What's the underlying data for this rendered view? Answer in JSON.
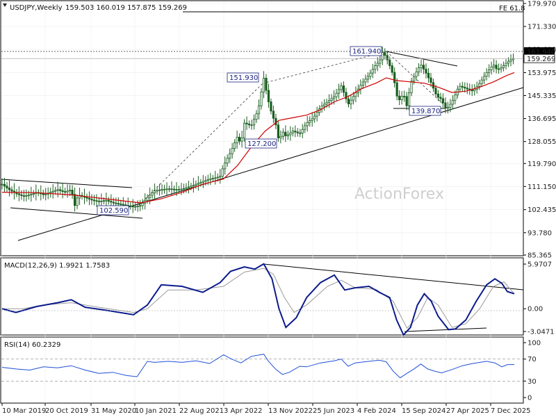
{
  "chart_data": {
    "type": "candlestick",
    "symbol": "USDJPY,Weekly",
    "ohlc": "159.503 160.019 157.875 159.269",
    "watermark": "ActionForex",
    "fe_label": "FE 61.8",
    "price_axis": {
      "ticks": [
        "179.970",
        "171.330",
        "162.690",
        "153.975",
        "145.335",
        "136.695",
        "128.055",
        "119.790",
        "111.150",
        "102.435",
        "93.780",
        "85.365"
      ],
      "current": "159.269",
      "level": "161.940"
    },
    "x_labels": [
      "10 Mar 2019",
      "20 Oct 2019",
      "31 May 2020",
      "10 Jan 2021",
      "22 Aug 2021",
      "3 Apr 2022",
      "13 Nov 2022",
      "25 Jun 2023",
      "4 Feb 2024",
      "15 Sep 2024",
      "27 Apr 2025",
      "7 Dec 2025"
    ],
    "price_path": [
      [
        0,
        112
      ],
      [
        10,
        110
      ],
      [
        20,
        108.5
      ],
      [
        30,
        107.5
      ],
      [
        40,
        108
      ],
      [
        50,
        109
      ],
      [
        60,
        108
      ],
      [
        70,
        109
      ],
      [
        80,
        110
      ],
      [
        90,
        109
      ],
      [
        100,
        110
      ],
      [
        105,
        104
      ],
      [
        110,
        108
      ],
      [
        120,
        107
      ],
      [
        130,
        106
      ],
      [
        140,
        105.5
      ],
      [
        150,
        106
      ],
      [
        160,
        105
      ],
      [
        170,
        104.5
      ],
      [
        180,
        104
      ],
      [
        190,
        103.5
      ],
      [
        200,
        104
      ],
      [
        210,
        107
      ],
      [
        220,
        109.5
      ],
      [
        230,
        110
      ],
      [
        240,
        110.3
      ],
      [
        250,
        110
      ],
      [
        260,
        110.2
      ],
      [
        270,
        111
      ],
      [
        280,
        112
      ],
      [
        290,
        113
      ],
      [
        300,
        114
      ],
      [
        310,
        114.5
      ],
      [
        315,
        115
      ],
      [
        320,
        119
      ],
      [
        330,
        124
      ],
      [
        340,
        130
      ],
      [
        345,
        127
      ],
      [
        350,
        135
      ],
      [
        360,
        134
      ],
      [
        370,
        140
      ],
      [
        378,
        151.9
      ],
      [
        384,
        144
      ],
      [
        390,
        138
      ],
      [
        395,
        135
      ],
      [
        400,
        128
      ],
      [
        405,
        132
      ],
      [
        410,
        130
      ],
      [
        420,
        132
      ],
      [
        430,
        131
      ],
      [
        440,
        135
      ],
      [
        450,
        137
      ],
      [
        460,
        141
      ],
      [
        470,
        143
      ],
      [
        480,
        145
      ],
      [
        490,
        149
      ],
      [
        500,
        142
      ],
      [
        510,
        146
      ],
      [
        520,
        150
      ],
      [
        530,
        153
      ],
      [
        540,
        157
      ],
      [
        545,
        158
      ],
      [
        550,
        161.9
      ],
      [
        558,
        158
      ],
      [
        565,
        153
      ],
      [
        572,
        143
      ],
      [
        580,
        146
      ],
      [
        585,
        141
      ],
      [
        590,
        150
      ],
      [
        600,
        155
      ],
      [
        605,
        157
      ],
      [
        612,
        154
      ],
      [
        620,
        150
      ],
      [
        628,
        145
      ],
      [
        635,
        144
      ],
      [
        640,
        140.5
      ],
      [
        645,
        141
      ],
      [
        652,
        144
      ],
      [
        660,
        149
      ],
      [
        670,
        148
      ],
      [
        680,
        147
      ],
      [
        690,
        150
      ],
      [
        700,
        154
      ],
      [
        710,
        157
      ],
      [
        715,
        155
      ],
      [
        722,
        156
      ],
      [
        730,
        158
      ],
      [
        738,
        159.3
      ]
    ],
    "sma_path": [
      [
        0,
        109
      ],
      [
        50,
        108.8
      ],
      [
        100,
        108
      ],
      [
        150,
        106.5
      ],
      [
        200,
        105
      ],
      [
        230,
        106.5
      ],
      [
        260,
        109
      ],
      [
        290,
        112
      ],
      [
        320,
        114
      ],
      [
        340,
        119
      ],
      [
        360,
        126
      ],
      [
        380,
        132
      ],
      [
        400,
        136
      ],
      [
        420,
        137
      ],
      [
        440,
        138
      ],
      [
        460,
        140
      ],
      [
        480,
        143
      ],
      [
        500,
        145
      ],
      [
        520,
        148
      ],
      [
        540,
        150
      ],
      [
        555,
        152
      ],
      [
        570,
        151
      ],
      [
        590,
        150.5
      ],
      [
        610,
        150
      ],
      [
        630,
        148.5
      ],
      [
        650,
        146.5
      ],
      [
        670,
        147
      ],
      [
        690,
        148.5
      ],
      [
        710,
        150.5
      ],
      [
        730,
        153
      ],
      [
        740,
        154
      ]
    ],
    "macd": {
      "label": "MACD(12,26,9) 1.9921 1.7583",
      "ticks": [
        "5.9707",
        "0.00",
        "-3.0471"
      ],
      "value": 1.9921,
      "signal": 1.7583,
      "macd_path": [
        [
          0,
          0
        ],
        [
          20,
          -0.5
        ],
        [
          50,
          0.3
        ],
        [
          80,
          0.8
        ],
        [
          100,
          1.2
        ],
        [
          120,
          0.2
        ],
        [
          150,
          -0.2
        ],
        [
          190,
          -0.8
        ],
        [
          210,
          0.5
        ],
        [
          230,
          3.2
        ],
        [
          260,
          3.0
        ],
        [
          290,
          2.2
        ],
        [
          315,
          3.5
        ],
        [
          330,
          5.0
        ],
        [
          350,
          5.6
        ],
        [
          365,
          5.3
        ],
        [
          378,
          6.0
        ],
        [
          390,
          4.0
        ],
        [
          400,
          0
        ],
        [
          410,
          -2.5
        ],
        [
          425,
          -1.2
        ],
        [
          440,
          1.5
        ],
        [
          460,
          3.5
        ],
        [
          480,
          4.5
        ],
        [
          495,
          2.5
        ],
        [
          510,
          2.8
        ],
        [
          530,
          3.0
        ],
        [
          545,
          2.2
        ],
        [
          560,
          1.5
        ],
        [
          570,
          -1.5
        ],
        [
          580,
          -3.5
        ],
        [
          590,
          -2.5
        ],
        [
          600,
          0.5
        ],
        [
          610,
          2.0
        ],
        [
          620,
          1.0
        ],
        [
          630,
          -1.0
        ],
        [
          645,
          -2.8
        ],
        [
          655,
          -2.7
        ],
        [
          670,
          -1.5
        ],
        [
          685,
          1.0
        ],
        [
          700,
          3.2
        ],
        [
          712,
          4.0
        ],
        [
          722,
          3.4
        ],
        [
          730,
          2.3
        ],
        [
          740,
          2.0
        ]
      ],
      "signal_path": [
        [
          0,
          0
        ],
        [
          30,
          0
        ],
        [
          60,
          0.5
        ],
        [
          100,
          0.8
        ],
        [
          140,
          0.2
        ],
        [
          190,
          -0.5
        ],
        [
          210,
          0
        ],
        [
          240,
          2.5
        ],
        [
          280,
          2.5
        ],
        [
          320,
          3.0
        ],
        [
          350,
          4.9
        ],
        [
          378,
          5.4
        ],
        [
          392,
          4.6
        ],
        [
          408,
          1.5
        ],
        [
          422,
          -0.5
        ],
        [
          440,
          0.5
        ],
        [
          470,
          3.0
        ],
        [
          490,
          3.8
        ],
        [
          510,
          2.8
        ],
        [
          540,
          2.6
        ],
        [
          565,
          1.0
        ],
        [
          585,
          -2.6
        ],
        [
          600,
          -1.2
        ],
        [
          615,
          1.5
        ],
        [
          630,
          0.5
        ],
        [
          650,
          -2.5
        ],
        [
          670,
          -2.0
        ],
        [
          690,
          0
        ],
        [
          710,
          3.0
        ],
        [
          725,
          3.6
        ],
        [
          740,
          2.0
        ]
      ]
    },
    "rsi": {
      "label": "RSI(14) 60.2329",
      "ticks": [
        "100",
        "70",
        "30",
        "0"
      ],
      "value": 60.2329,
      "path": [
        [
          0,
          55
        ],
        [
          20,
          52
        ],
        [
          40,
          50
        ],
        [
          60,
          56
        ],
        [
          80,
          54
        ],
        [
          100,
          58
        ],
        [
          120,
          50
        ],
        [
          140,
          44
        ],
        [
          160,
          46
        ],
        [
          180,
          40
        ],
        [
          195,
          38
        ],
        [
          210,
          66
        ],
        [
          220,
          64
        ],
        [
          240,
          66
        ],
        [
          260,
          64
        ],
        [
          280,
          67
        ],
        [
          300,
          62
        ],
        [
          320,
          78
        ],
        [
          330,
          71
        ],
        [
          345,
          63
        ],
        [
          360,
          75
        ],
        [
          378,
          79
        ],
        [
          385,
          66
        ],
        [
          395,
          52
        ],
        [
          405,
          42
        ],
        [
          415,
          46
        ],
        [
          430,
          57
        ],
        [
          440,
          56
        ],
        [
          460,
          63
        ],
        [
          480,
          67
        ],
        [
          490,
          70
        ],
        [
          500,
          57
        ],
        [
          510,
          63
        ],
        [
          530,
          66
        ],
        [
          545,
          68
        ],
        [
          555,
          65
        ],
        [
          565,
          48
        ],
        [
          575,
          36
        ],
        [
          585,
          44
        ],
        [
          595,
          52
        ],
        [
          605,
          61
        ],
        [
          615,
          52
        ],
        [
          625,
          48
        ],
        [
          635,
          45
        ],
        [
          650,
          51
        ],
        [
          665,
          58
        ],
        [
          680,
          62
        ],
        [
          700,
          66
        ],
        [
          712,
          63
        ],
        [
          722,
          56
        ],
        [
          730,
          60
        ],
        [
          740,
          60
        ]
      ]
    }
  }
}
